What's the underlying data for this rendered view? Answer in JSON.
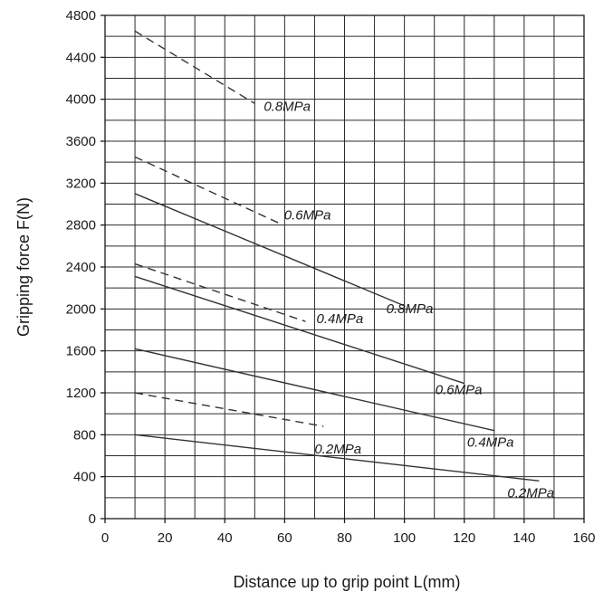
{
  "chart_data": {
    "type": "line",
    "title": "",
    "xlabel": "Distance up to grip point  L(mm)",
    "ylabel": "Gripping force  F(N)",
    "xlim": [
      0,
      160
    ],
    "ylim": [
      0,
      4800
    ],
    "x_ticks": [
      "0",
      "20",
      "40",
      "60",
      "80",
      "100",
      "120",
      "140",
      "160"
    ],
    "y_ticks": [
      "0",
      "400",
      "800",
      "1200",
      "1600",
      "2000",
      "2400",
      "2800",
      "3200",
      "3600",
      "4000",
      "4400",
      "4800"
    ],
    "grid": true,
    "minor_x_grid_step": 10,
    "minor_y_grid_step": 200,
    "series": [
      {
        "name": "0.8MPa",
        "style": "dashed",
        "x": [
          10,
          50
        ],
        "y": [
          4650,
          3960
        ],
        "label": "0.8MPa"
      },
      {
        "name": "0.6MPa",
        "style": "dashed",
        "x": [
          10,
          58
        ],
        "y": [
          3450,
          2820
        ],
        "label": "0.6MPa"
      },
      {
        "name": "0.4MPa",
        "style": "dashed",
        "x": [
          10,
          67
        ],
        "y": [
          2430,
          1880
        ],
        "label": "0.4MPa"
      },
      {
        "name": "0.2MPa",
        "style": "dashed",
        "x": [
          10,
          73
        ],
        "y": [
          1200,
          880
        ],
        "label": "0.2MPa"
      },
      {
        "name": "0.8MPa",
        "style": "solid",
        "x": [
          10,
          100
        ],
        "y": [
          3100,
          2030
        ],
        "label": "0.8MPa"
      },
      {
        "name": "0.6MPa",
        "style": "solid",
        "x": [
          10,
          120
        ],
        "y": [
          2310,
          1290
        ],
        "label": "0.6MPa"
      },
      {
        "name": "0.4MPa",
        "style": "solid",
        "x": [
          10,
          130
        ],
        "y": [
          1620,
          840
        ],
        "label": "0.4MPa"
      },
      {
        "name": "0.2MPa",
        "style": "solid",
        "x": [
          10,
          145
        ],
        "y": [
          800,
          360
        ],
        "label": "0.2MPa"
      }
    ]
  }
}
